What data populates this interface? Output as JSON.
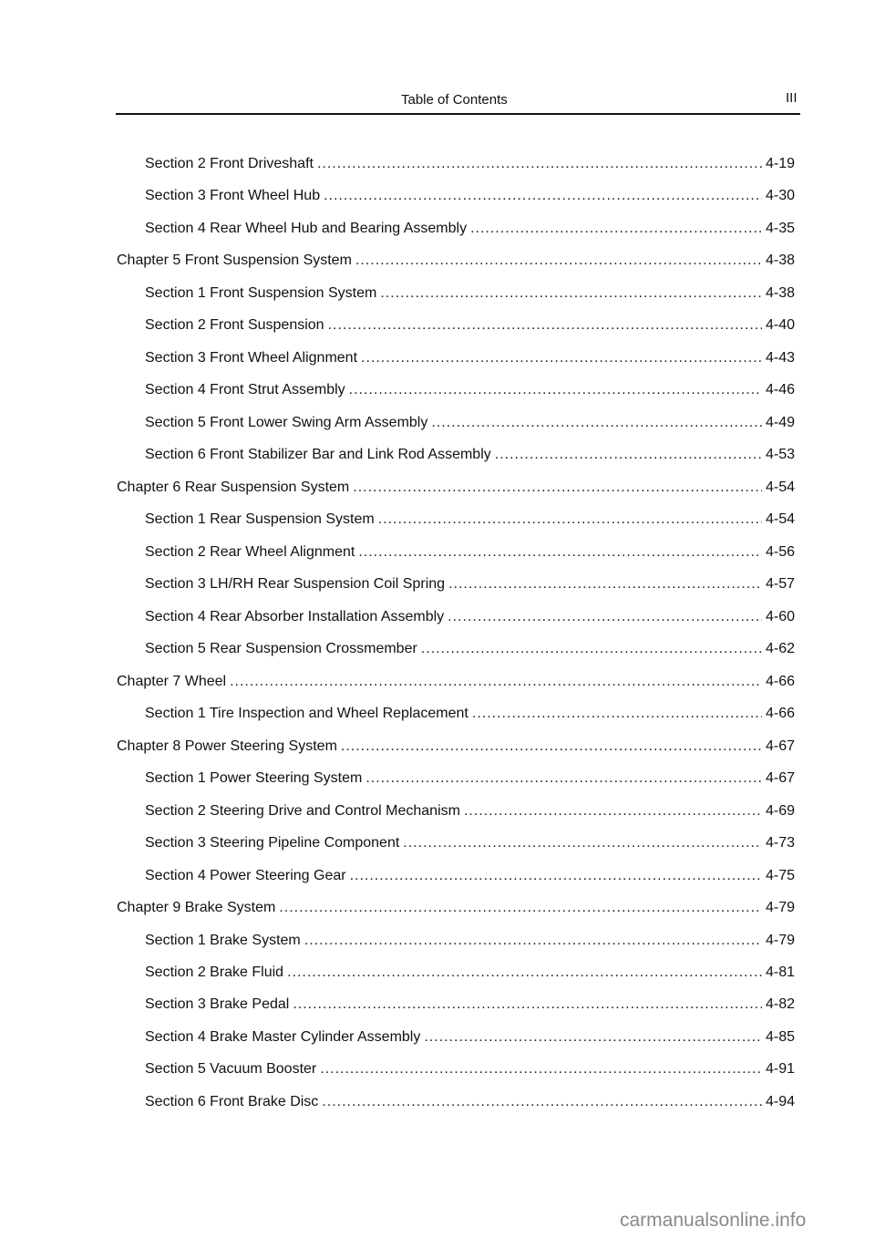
{
  "header": {
    "title": "Table of Contents",
    "page": "III"
  },
  "entries": [
    {
      "level": "section",
      "label": "Section 2 Front Driveshaft",
      "page": "4-19"
    },
    {
      "level": "section",
      "label": "Section 3 Front Wheel Hub",
      "page": "4-30"
    },
    {
      "level": "section",
      "label": "Section 4 Rear Wheel Hub and Bearing Assembly",
      "page": "4-35"
    },
    {
      "level": "chapter",
      "label": "Chapter 5 Front Suspension System",
      "page": "4-38"
    },
    {
      "level": "section",
      "label": "Section 1 Front Suspension System",
      "page": "4-38"
    },
    {
      "level": "section",
      "label": "Section 2 Front Suspension",
      "page": "4-40"
    },
    {
      "level": "section",
      "label": "Section 3 Front Wheel Alignment",
      "page": "4-43"
    },
    {
      "level": "section",
      "label": "Section 4 Front Strut Assembly",
      "page": "4-46"
    },
    {
      "level": "section",
      "label": "Section 5 Front Lower Swing Arm Assembly",
      "page": "4-49"
    },
    {
      "level": "section",
      "label": "Section 6 Front Stabilizer Bar and Link Rod Assembly",
      "page": "4-53"
    },
    {
      "level": "chapter",
      "label": "Chapter 6 Rear Suspension System",
      "page": "4-54"
    },
    {
      "level": "section",
      "label": "Section 1 Rear Suspension System",
      "page": "4-54"
    },
    {
      "level": "section",
      "label": "Section 2 Rear Wheel Alignment",
      "page": "4-56"
    },
    {
      "level": "section",
      "label": "Section 3 LH/RH Rear Suspension Coil Spring",
      "page": "4-57"
    },
    {
      "level": "section",
      "label": "Section 4 Rear Absorber Installation Assembly",
      "page": "4-60"
    },
    {
      "level": "section",
      "label": "Section 5 Rear Suspension Crossmember",
      "page": "4-62"
    },
    {
      "level": "chapter",
      "label": "Chapter 7 Wheel",
      "page": "4-66"
    },
    {
      "level": "section",
      "label": "Section 1 Tire Inspection and Wheel Replacement",
      "page": "4-66"
    },
    {
      "level": "chapter",
      "label": "Chapter 8 Power Steering System",
      "page": "4-67"
    },
    {
      "level": "section",
      "label": "Section 1 Power Steering System",
      "page": "4-67"
    },
    {
      "level": "section",
      "label": "Section 2 Steering Drive and Control Mechanism",
      "page": "4-69"
    },
    {
      "level": "section",
      "label": "Section 3 Steering Pipeline Component",
      "page": "4-73"
    },
    {
      "level": "section",
      "label": "Section 4 Power Steering Gear",
      "page": "4-75"
    },
    {
      "level": "chapter",
      "label": "Chapter 9 Brake System",
      "page": "4-79"
    },
    {
      "level": "section",
      "label": "Section 1 Brake System",
      "page": "4-79"
    },
    {
      "level": "section",
      "label": "Section 2 Brake Fluid",
      "page": "4-81"
    },
    {
      "level": "section",
      "label": "Section 3 Brake Pedal",
      "page": "4-82"
    },
    {
      "level": "section",
      "label": "Section 4 Brake Master Cylinder Assembly",
      "page": "4-85"
    },
    {
      "level": "section",
      "label": "Section 5 Vacuum Booster",
      "page": "4-91"
    },
    {
      "level": "section",
      "label": "Section 6 Front Brake Disc",
      "page": "4-94"
    }
  ],
  "watermark": "carmanualsonline.info"
}
